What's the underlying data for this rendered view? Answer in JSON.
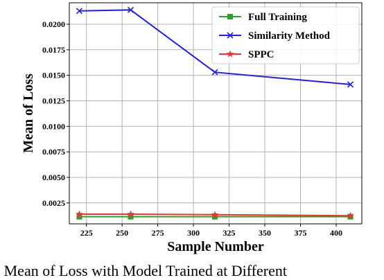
{
  "chart_data": {
    "type": "line",
    "title": "",
    "xlabel": "Sample Number",
    "ylabel": "Mean of Loss",
    "xlim": [
      213,
      418
    ],
    "ylim": [
      0.00045,
      0.0221
    ],
    "x_ticks": [
      "225",
      "250",
      "275",
      "300",
      "325",
      "350",
      "375",
      "400"
    ],
    "y_ticks": [
      "0.0025",
      "0.0050",
      "0.0075",
      "0.0100",
      "0.0125",
      "0.0150",
      "0.0175",
      "0.0200"
    ],
    "grid": true,
    "legend_position": "top-right",
    "series": [
      {
        "name": "Full Training",
        "color": "#2ca02c",
        "marker": "square",
        "x": [
          220,
          256,
          315,
          410
        ],
        "y": [
          0.00115,
          0.00115,
          0.00115,
          0.00115
        ]
      },
      {
        "name": "Similarity Method",
        "color": "#1f1fee",
        "marker": "x",
        "x": [
          220,
          256,
          315,
          410
        ],
        "y": [
          0.0213,
          0.0214,
          0.0153,
          0.0141
        ]
      },
      {
        "name": "SPPC",
        "color": "#ee3333",
        "marker": "star",
        "x": [
          220,
          256,
          315,
          410
        ],
        "y": [
          0.0014,
          0.0014,
          0.00135,
          0.00125
        ]
      }
    ]
  },
  "caption": ": Mean of Loss with Model Trained at Different"
}
